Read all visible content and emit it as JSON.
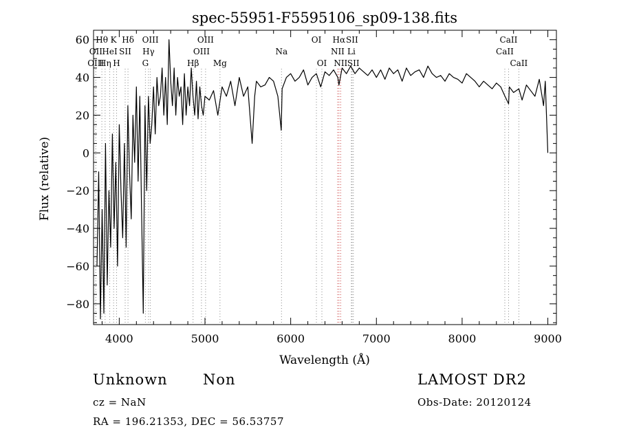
{
  "chart_data": {
    "type": "line",
    "title": "spec-55951-F5595106_sp09-138.fits",
    "xlabel": "Wavelength (Å)",
    "ylabel": "Flux (relative)",
    "xlim": [
      3700,
      9100
    ],
    "ylim": [
      -91,
      65
    ],
    "xticks": [
      4000,
      5000,
      6000,
      7000,
      8000,
      9000
    ],
    "yticks": [
      -80,
      -60,
      -40,
      -20,
      0,
      20,
      40,
      60
    ],
    "grid": false,
    "series": [
      {
        "x": [
          3740,
          3760,
          3780,
          3800,
          3820,
          3840,
          3860,
          3880,
          3900,
          3920,
          3940,
          3960,
          3980,
          4000,
          4020,
          4040,
          4060,
          4080,
          4100,
          4120,
          4140,
          4160,
          4180,
          4200,
          4220,
          4240,
          4260,
          4280,
          4300,
          4320,
          4340,
          4360,
          4380,
          4400,
          4420,
          4440,
          4460,
          4480,
          4500,
          4520,
          4540,
          4560,
          4580,
          4600,
          4620,
          4640,
          4660,
          4680,
          4700,
          4720,
          4740,
          4760,
          4780,
          4800,
          4820,
          4840,
          4860,
          4880,
          4900,
          4920,
          4940,
          4960,
          4980,
          5000,
          5050,
          5100,
          5150,
          5200,
          5250,
          5300,
          5350,
          5400,
          5450,
          5500,
          5550,
          5580,
          5600,
          5650,
          5700,
          5750,
          5800,
          5850,
          5890,
          5900,
          5950,
          6000,
          6050,
          6100,
          6150,
          6200,
          6250,
          6300,
          6350,
          6400,
          6450,
          6500,
          6550,
          6563,
          6600,
          6650,
          6700,
          6750,
          6800,
          6850,
          6900,
          6950,
          7000,
          7050,
          7100,
          7150,
          7200,
          7250,
          7300,
          7350,
          7400,
          7450,
          7500,
          7550,
          7600,
          7650,
          7700,
          7750,
          7800,
          7850,
          7900,
          7950,
          8000,
          8050,
          8100,
          8150,
          8200,
          8250,
          8300,
          8350,
          8400,
          8450,
          8500,
          8542,
          8550,
          8600,
          8662,
          8700,
          8750,
          8800,
          8850,
          8900,
          8950,
          8970,
          9000
        ],
        "y": [
          -60,
          -10,
          -88,
          -30,
          -85,
          5,
          -70,
          -20,
          -50,
          10,
          -40,
          -5,
          -60,
          15,
          -20,
          -45,
          5,
          -50,
          25,
          -10,
          -35,
          20,
          -5,
          35,
          -15,
          30,
          -30,
          -85,
          25,
          -20,
          30,
          5,
          15,
          35,
          10,
          40,
          25,
          30,
          45,
          20,
          40,
          15,
          60,
          38,
          25,
          45,
          20,
          40,
          30,
          35,
          15,
          42,
          20,
          35,
          25,
          45,
          30,
          20,
          38,
          18,
          35,
          25,
          20,
          30,
          28,
          33,
          20,
          35,
          30,
          38,
          25,
          40,
          30,
          35,
          5,
          30,
          38,
          35,
          36,
          40,
          38,
          30,
          12,
          34,
          40,
          42,
          38,
          40,
          44,
          36,
          40,
          42,
          35,
          43,
          41,
          44,
          40,
          36,
          45,
          42,
          46,
          42,
          45,
          43,
          41,
          44,
          40,
          44,
          39,
          45,
          42,
          44,
          38,
          45,
          41,
          43,
          44,
          40,
          46,
          42,
          40,
          41,
          38,
          42,
          40,
          39,
          37,
          42,
          40,
          38,
          35,
          38,
          36,
          34,
          37,
          35,
          30,
          26,
          35,
          32,
          34,
          28,
          36,
          33,
          30,
          39,
          25,
          38,
          0
        ]
      }
    ],
    "line_labels": [
      {
        "label": "Hθ",
        "x": 3797,
        "row": 0
      },
      {
        "label": "OII",
        "x": 3727,
        "row": 1
      },
      {
        "label": "OIII",
        "x": 3726,
        "row": 2
      },
      {
        "label": "K",
        "x": 3934,
        "row": 0
      },
      {
        "label": "HeI",
        "x": 3889,
        "row": 1
      },
      {
        "label": "Hη",
        "x": 3835,
        "row": 2
      },
      {
        "label": "SII",
        "x": 4069,
        "row": 1
      },
      {
        "label": "H",
        "x": 3969,
        "row": 2
      },
      {
        "label": "Hδ",
        "x": 4102,
        "row": 0
      },
      {
        "label": "OIII",
        "x": 4363,
        "row": 0
      },
      {
        "label": "Hγ",
        "x": 4341,
        "row": 1
      },
      {
        "label": "G",
        "x": 4305,
        "row": 2
      },
      {
        "label": "OIII",
        "x": 5007,
        "row": 0
      },
      {
        "label": "OIII",
        "x": 4959,
        "row": 1
      },
      {
        "label": "Hβ",
        "x": 4861,
        "row": 2
      },
      {
        "label": "Mg",
        "x": 5175,
        "row": 2
      },
      {
        "label": "Na",
        "x": 5893,
        "row": 1
      },
      {
        "label": "OI",
        "x": 6300,
        "row": 0
      },
      {
        "label": "OI",
        "x": 6364,
        "row": 2
      },
      {
        "label": "Hα",
        "x": 6563,
        "row": 0
      },
      {
        "label": "SII",
        "x": 6716,
        "row": 0
      },
      {
        "label": "NII",
        "x": 6548,
        "row": 1
      },
      {
        "label": "Li",
        "x": 6708,
        "row": 1
      },
      {
        "label": "NII",
        "x": 6583,
        "row": 2
      },
      {
        "label": "SII",
        "x": 6731,
        "row": 2
      },
      {
        "label": "CaII",
        "x": 8542,
        "row": 0
      },
      {
        "label": "CaII",
        "x": 8498,
        "row": 1
      },
      {
        "label": "CaII",
        "x": 8662,
        "row": 2
      }
    ]
  },
  "footer": {
    "class_label": "Unknown",
    "subclass_label": "Non",
    "survey_label": "LAMOST DR2",
    "cz_text": "cz = NaN",
    "obs_date_text": "Obs-Date: 20120124",
    "coords_text": "RA = 196.21353, DEC =  56.53757"
  }
}
